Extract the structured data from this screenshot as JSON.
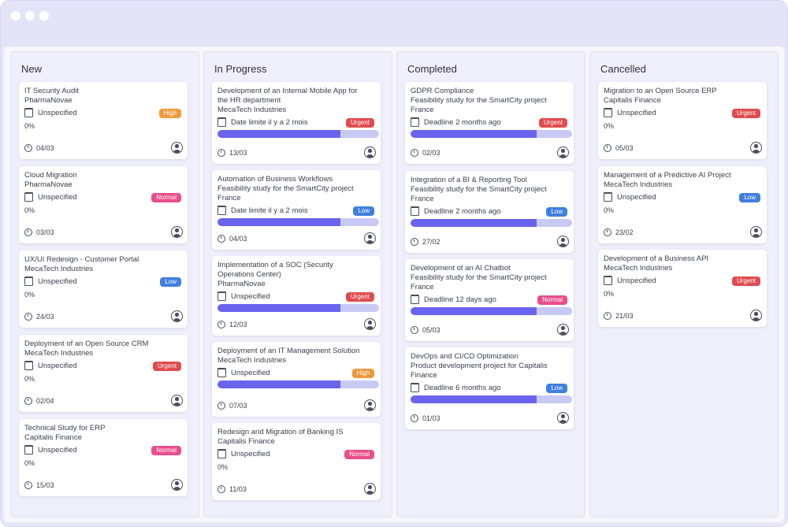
{
  "columns": [
    {
      "title": "New",
      "cards": [
        {
          "lines": [
            "IT Security Audit",
            "PharmaNovae"
          ],
          "deadline": "Unspecified",
          "priority": "High",
          "progress_text": "0%",
          "date": "04/03"
        },
        {
          "lines": [
            "Cloud Migration",
            "PharmaNovae"
          ],
          "deadline": "Unspecified",
          "priority": "Normal",
          "progress_text": "0%",
          "date": "03/03"
        },
        {
          "lines": [
            "UX/UI Redesign - Customer Portal",
            "MecaTech Industries"
          ],
          "deadline": "Unspecified",
          "priority": "Low",
          "progress_text": "0%",
          "date": "24/03"
        },
        {
          "lines": [
            "Deployment of an Open Source CRM",
            "MecaTech Industries"
          ],
          "deadline": "Unspecified",
          "priority": "Urgent",
          "progress_text": "0%",
          "date": "02/04"
        },
        {
          "lines": [
            "Technical Study for ERP",
            "Capitalis Finance"
          ],
          "deadline": "Unspecified",
          "priority": "Normal",
          "progress_text": "0%",
          "date": "15/03"
        }
      ]
    },
    {
      "title": "In Progress",
      "cards": [
        {
          "lines": [
            "Development of an Internal Mobile App for",
            "the HR department",
            "MecaTech Industries"
          ],
          "deadline": "Date limite il y a 2 mois",
          "priority": "Urgent",
          "progress": 0.76,
          "date": "13/03"
        },
        {
          "lines": [
            "Automation of Business Workflows",
            "Feasibility study for the SmartCity project",
            "France"
          ],
          "deadline": "Date limite il y a 2 mois",
          "priority": "Low",
          "progress": 0.76,
          "date": "04/03"
        },
        {
          "lines": [
            "Implementation of a SOC (Security",
            "Operations Center)",
            "PharmaNovae"
          ],
          "deadline": "Unspecified",
          "priority": "Urgent",
          "progress": 0.76,
          "date": "12/03"
        },
        {
          "lines": [
            "Deployment of an IT Management Solution",
            "MecaTech Industries"
          ],
          "deadline": "Unspecified",
          "priority": "High",
          "progress": 0.76,
          "date": "07/03"
        },
        {
          "lines": [
            "Redesign and Migration of Banking IS",
            "Capitalis Finance"
          ],
          "deadline": "Unspecified",
          "priority": "Normal",
          "progress_text": "0%",
          "date": "11/03"
        }
      ]
    },
    {
      "title": "Completed",
      "cards": [
        {
          "lines": [
            "GDPR Compliance",
            "Feasibility study for the SmartCity project",
            "France"
          ],
          "deadline": "Deadline 2 months ago",
          "priority": "Urgent",
          "progress": 0.78,
          "date": "02/03"
        },
        {
          "lines": [
            "Integration of a BI & Reporting Tool",
            "Feasibility study for the SmartCity project",
            "France"
          ],
          "deadline": "Deadline 2 months ago",
          "priority": "Low",
          "progress": 0.78,
          "date": "27/02"
        },
        {
          "lines": [
            "Development of an AI Chatbot",
            "Feasibility study for the SmartCity project",
            "France"
          ],
          "deadline": "Deadline 12 days ago",
          "priority": "Normal",
          "progress": 0.78,
          "date": "05/03"
        },
        {
          "lines": [
            "DevOps and CI/CD Optimization",
            "Product development project for Capitalis",
            "Finance"
          ],
          "deadline": "Deadline 6 months ago",
          "priority": "Low",
          "progress": 0.78,
          "date": "01/03"
        }
      ]
    },
    {
      "title": "Cancelled",
      "cards": [
        {
          "lines": [
            "Migration to an Open Source ERP",
            "Capitalis Finance"
          ],
          "deadline": "Unspecified",
          "priority": "Urgent",
          "progress_text": "0%",
          "date": "05/03"
        },
        {
          "lines": [
            "Management of a Predictive AI Project",
            "MecaTech Industries"
          ],
          "deadline": "Unspecified",
          "priority": "Low",
          "progress_text": "0%",
          "date": "23/02"
        },
        {
          "lines": [
            "Development of a Business API",
            "MecaTech Industries"
          ],
          "deadline": "Unspecified",
          "priority": "Urgent",
          "progress_text": "0%",
          "date": "21/03"
        }
      ]
    }
  ],
  "colors": {
    "High": "#f0983c",
    "Normal": "#ea4e8a",
    "Low": "#3f7fe0",
    "Urgent": "#e24b4f",
    "progress_fill": "#6a63ee",
    "progress_track": "#c9caf4"
  },
  "icons": {
    "deadline": "calendar-icon",
    "date": "clock-icon",
    "assignee": "user-avatar-icon"
  }
}
